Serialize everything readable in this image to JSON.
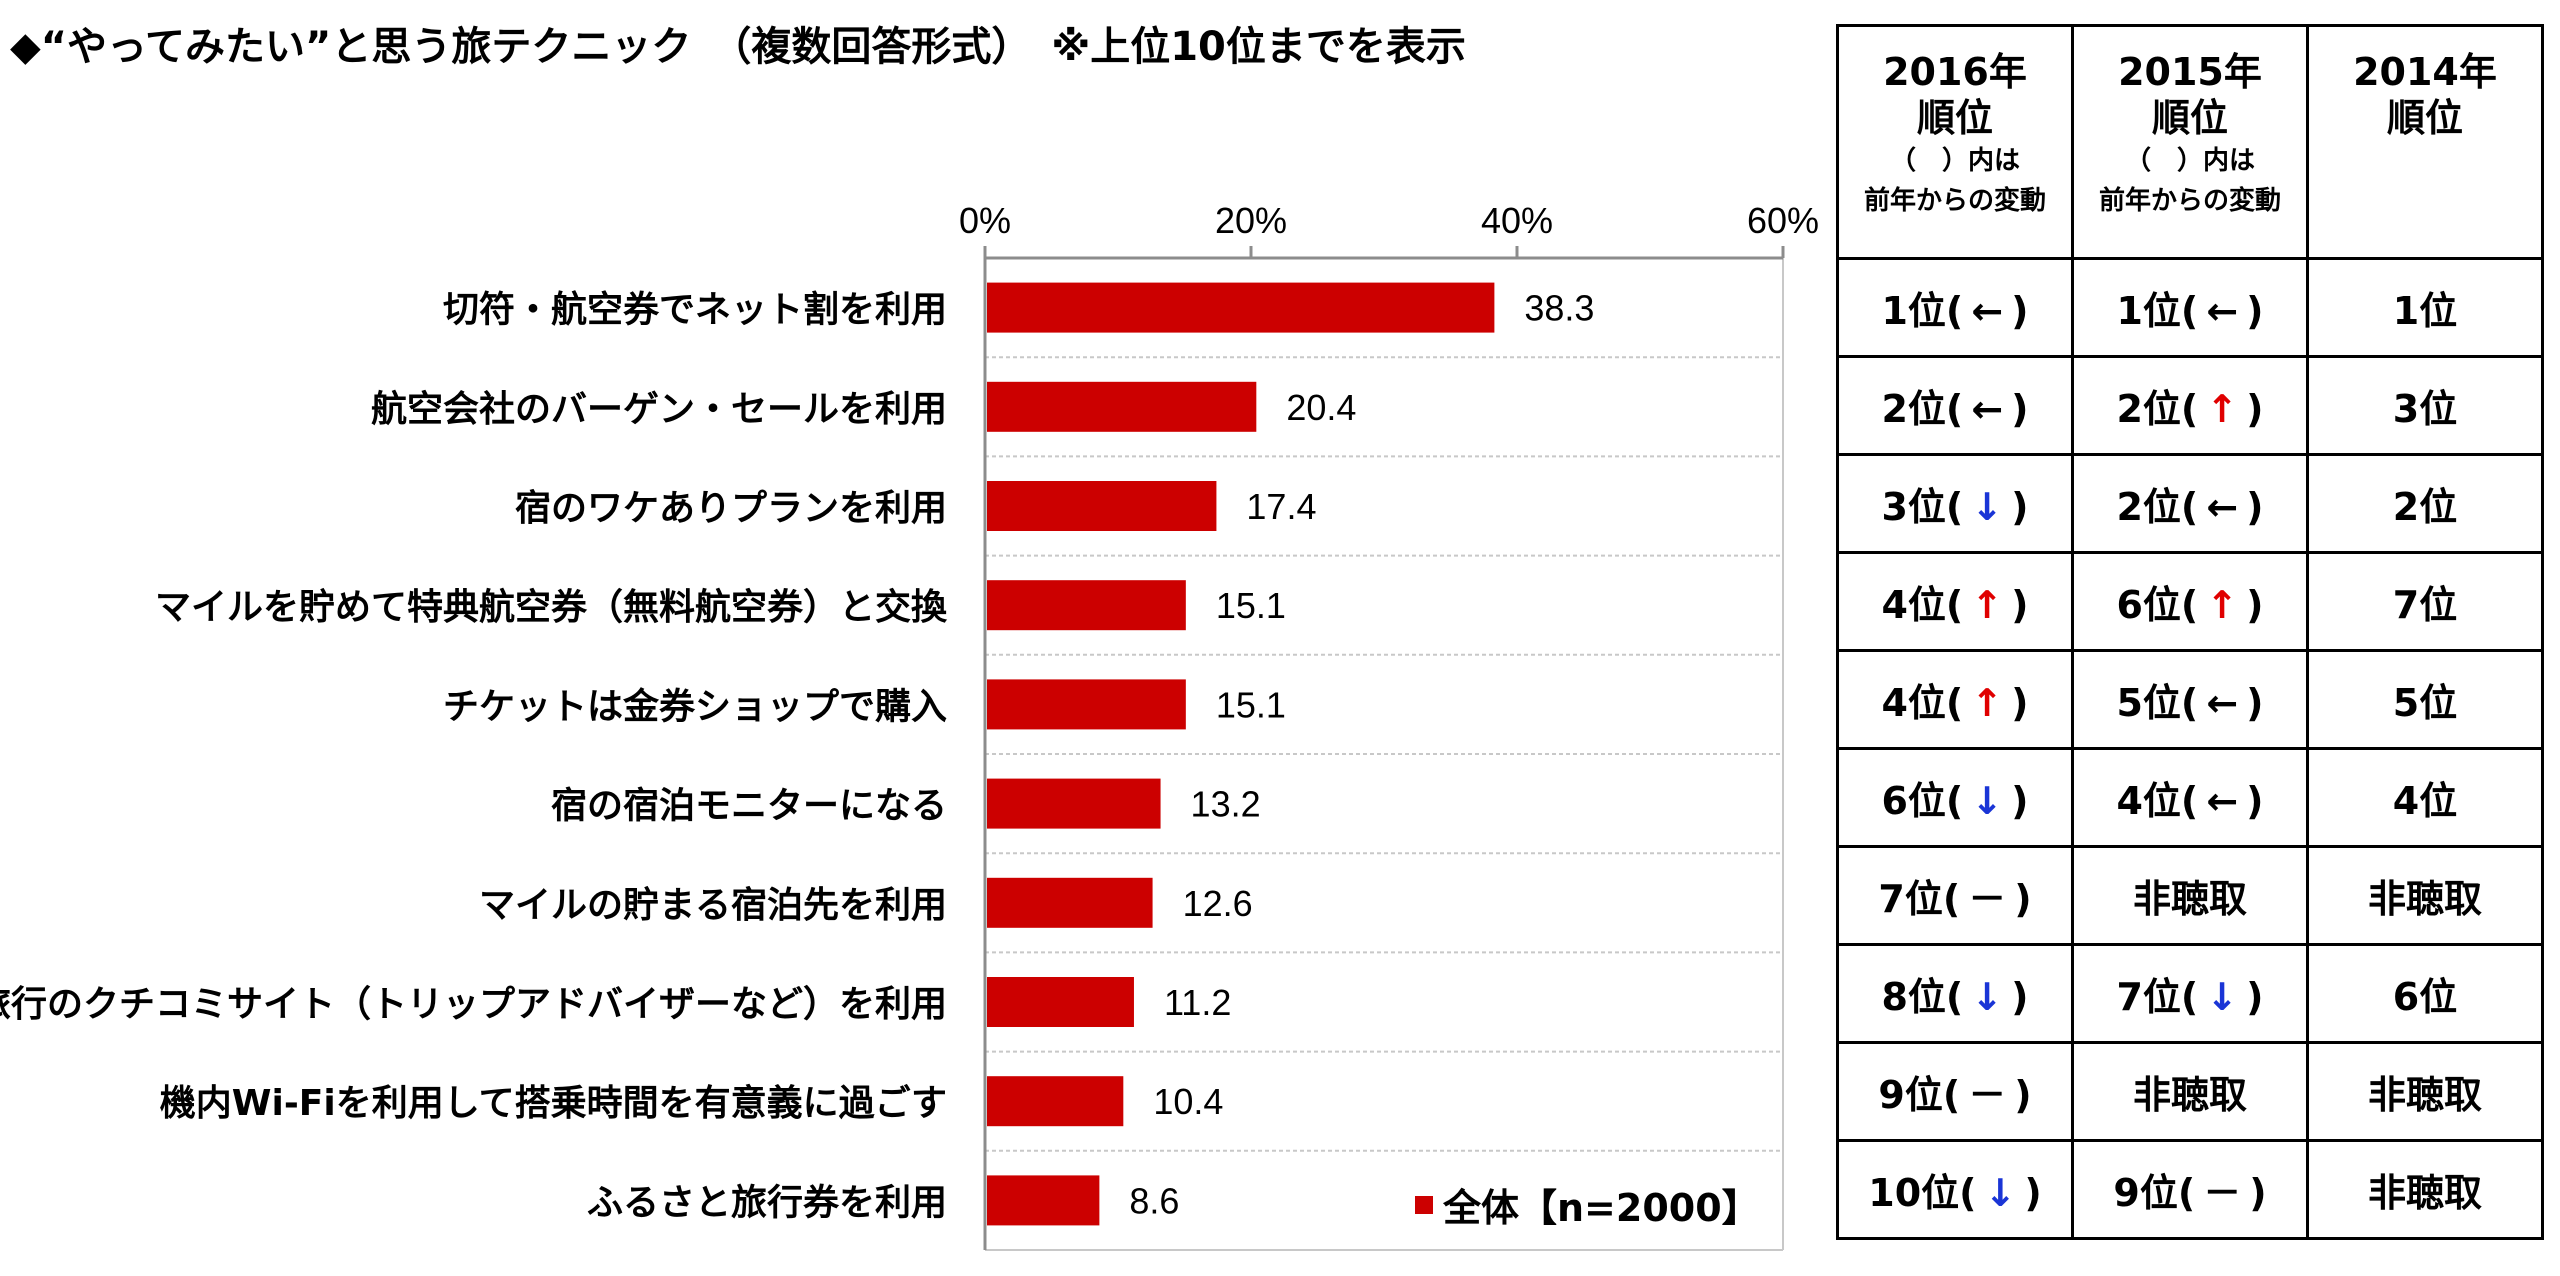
{
  "title": "◆“やってみたい”と思う旅テクニック　（複数回答形式）　※上位10位までを表示",
  "legend": {
    "label": "全体【n=2000】",
    "color": "#cc0000"
  },
  "chart_data": {
    "type": "bar",
    "orientation": "horizontal",
    "categories": [
      "切符・航空券でネット割を利用",
      "航空会社のバーゲン・セールを利用",
      "宿のワケありプランを利用",
      "マイルを貯めて特典航空券（無料航空券）と交換",
      "チケットは金券ショップで購入",
      "宿の宿泊モニターになる",
      "マイルの貯まる宿泊先を利用",
      "旅行のクチコミサイト（トリップアドバイザーなど）を利用",
      "機内Wi-Fiを利用して搭乗時間を有意義に過ごす",
      "ふるさと旅行券を利用"
    ],
    "series": [
      {
        "name": "全体【n=2000】",
        "values": [
          38.3,
          20.4,
          17.4,
          15.1,
          15.1,
          13.2,
          12.6,
          11.2,
          10.4,
          8.6
        ],
        "color": "#cc0000"
      }
    ],
    "data_labels": [
      "38.3",
      "20.4",
      "17.4",
      "15.1",
      "15.1",
      "13.2",
      "12.6",
      "11.2",
      "10.4",
      "8.6"
    ],
    "xlim": [
      0,
      60
    ],
    "xticks": [
      0,
      20,
      40,
      60
    ],
    "xtick_labels": [
      "0%",
      "20%",
      "40%",
      "60%"
    ],
    "axis_position": "top",
    "grid": true,
    "legend_position": "bottom-right"
  },
  "table": {
    "headers": [
      {
        "year": "2016年",
        "rank": "順位",
        "note1": "（　）内は",
        "note2": "前年からの変動"
      },
      {
        "year": "2015年",
        "rank": "順位",
        "note1": "（　）内は",
        "note2": "前年からの変動"
      },
      {
        "year": "2014年",
        "rank": "順位",
        "note1": "",
        "note2": ""
      }
    ],
    "rows": [
      [
        {
          "text": "1位",
          "arrow": "←",
          "dir": "left"
        },
        {
          "text": "1位",
          "arrow": "←",
          "dir": "left"
        },
        {
          "text": "1位"
        }
      ],
      [
        {
          "text": "2位",
          "arrow": "←",
          "dir": "left"
        },
        {
          "text": "2位",
          "arrow": "↑",
          "dir": "up"
        },
        {
          "text": "3位"
        }
      ],
      [
        {
          "text": "3位",
          "arrow": "↓",
          "dir": "down"
        },
        {
          "text": "2位",
          "arrow": "←",
          "dir": "left"
        },
        {
          "text": "2位"
        }
      ],
      [
        {
          "text": "4位",
          "arrow": "↑",
          "dir": "up"
        },
        {
          "text": "6位",
          "arrow": "↑",
          "dir": "up"
        },
        {
          "text": "7位"
        }
      ],
      [
        {
          "text": "4位",
          "arrow": "↑",
          "dir": "up"
        },
        {
          "text": "5位",
          "arrow": "←",
          "dir": "left"
        },
        {
          "text": "5位"
        }
      ],
      [
        {
          "text": "6位",
          "arrow": "↓",
          "dir": "down"
        },
        {
          "text": "4位",
          "arrow": "←",
          "dir": "left"
        },
        {
          "text": "4位"
        }
      ],
      [
        {
          "text": "7位",
          "arrow": "－",
          "dir": "none"
        },
        {
          "text": "非聴取"
        },
        {
          "text": "非聴取"
        }
      ],
      [
        {
          "text": "8位",
          "arrow": "↓",
          "dir": "down"
        },
        {
          "text": "7位",
          "arrow": "↓",
          "dir": "down"
        },
        {
          "text": "6位"
        }
      ],
      [
        {
          "text": "9位",
          "arrow": "－",
          "dir": "none"
        },
        {
          "text": "非聴取"
        },
        {
          "text": "非聴取"
        }
      ],
      [
        {
          "text": "10位",
          "arrow": "↓",
          "dir": "down"
        },
        {
          "text": "9位",
          "arrow": "－",
          "dir": "none"
        },
        {
          "text": "非聴取"
        }
      ]
    ],
    "arrow_colors": {
      "up": "#e00000",
      "down": "#1a35d6",
      "left": "#000000",
      "none": "#000000"
    }
  }
}
